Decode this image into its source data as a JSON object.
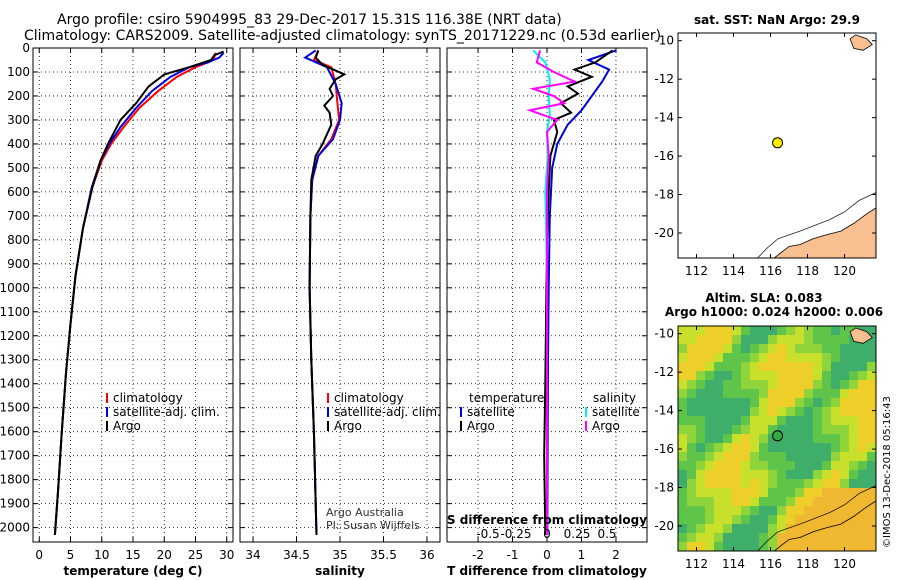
{
  "header": {
    "line1": "Argo profile: csiro 5904995_83 29-Dec-2017 15.31S 116.38E (NRT data)",
    "line2": "Climatology: CARS2009. Satellite-adjusted climatology: synTS_20171229.nc (0.53d earlier)"
  },
  "colors": {
    "climatology": "#ff0000",
    "satellite": "#0000dd",
    "argo": "#000000",
    "sat_salinity": "#00eeee",
    "argo_salinity": "#ff00ff",
    "land": "#f8c090"
  },
  "credit": "©IMOS 13-Dec-2018 05:16:43",
  "chart_data": [
    {
      "type": "line",
      "name": "temperature",
      "xlabel": "temperature (deg C)",
      "xlim": [
        -1,
        31
      ],
      "ylim": [
        2060,
        0
      ],
      "xticks": [
        0,
        5,
        10,
        15,
        20,
        25,
        30
      ],
      "yticks": [
        0,
        100,
        200,
        300,
        400,
        500,
        600,
        700,
        800,
        900,
        1000,
        1100,
        1200,
        1300,
        1400,
        1500,
        1600,
        1700,
        1800,
        1900,
        2000
      ],
      "legend": [
        "climatology",
        "satellite-adj. clim.",
        "Argo"
      ],
      "series": [
        {
          "name": "climatology",
          "color": "red",
          "points": [
            [
              28.2,
              20
            ],
            [
              28,
              40
            ],
            [
              27,
              60
            ],
            [
              25,
              80
            ],
            [
              22,
              120
            ],
            [
              19,
              180
            ],
            [
              16,
              250
            ],
            [
              13.5,
              330
            ],
            [
              11.5,
              400
            ],
            [
              10,
              470
            ],
            [
              8.5,
              580
            ],
            [
              7,
              750
            ],
            [
              5.8,
              950
            ],
            [
              5,
              1150
            ],
            [
              4.3,
              1350
            ],
            [
              3.6,
              1600
            ],
            [
              3,
              1850
            ],
            [
              2.5,
              2030
            ]
          ]
        },
        {
          "name": "satellite-adj. clim.",
          "color": "blue",
          "points": [
            [
              29.5,
              20
            ],
            [
              28.8,
              40
            ],
            [
              27,
              60
            ],
            [
              24,
              80
            ],
            [
              21,
              120
            ],
            [
              18,
              180
            ],
            [
              15.5,
              250
            ],
            [
              13,
              330
            ],
            [
              11.2,
              400
            ],
            [
              9.8,
              470
            ],
            [
              8.4,
              580
            ],
            [
              7,
              750
            ],
            [
              5.8,
              950
            ],
            [
              5,
              1150
            ],
            [
              4.3,
              1350
            ],
            [
              3.6,
              1600
            ],
            [
              3,
              1850
            ],
            [
              2.5,
              2030
            ]
          ]
        },
        {
          "name": "Argo",
          "color": "black",
          "points": [
            [
              29.5,
              15
            ],
            [
              28,
              30
            ],
            [
              27.5,
              50
            ],
            [
              24,
              80
            ],
            [
              20,
              110
            ],
            [
              17.5,
              160
            ],
            [
              15.5,
              230
            ],
            [
              13,
              300
            ],
            [
              11,
              400
            ],
            [
              9.8,
              470
            ],
            [
              8.5,
              580
            ],
            [
              7,
              750
            ],
            [
              5.8,
              950
            ],
            [
              5,
              1150
            ],
            [
              4.3,
              1350
            ],
            [
              3.6,
              1600
            ],
            [
              3,
              1850
            ],
            [
              2.5,
              2030
            ]
          ]
        }
      ]
    },
    {
      "type": "line",
      "name": "salinity",
      "xlabel": "salinity",
      "xlim": [
        33.85,
        36.15
      ],
      "ylim": [
        2060,
        0
      ],
      "xticks": [
        34,
        34.5,
        35,
        35.5,
        36
      ],
      "xticklabels": [
        "34",
        "34.5",
        "35",
        "35.5",
        "36"
      ],
      "legend": [
        "climatology",
        "satellite-adj. clim.",
        "Argo"
      ],
      "annotation": [
        "Argo Australia",
        "PI: Susan Wijffels"
      ],
      "series": [
        {
          "name": "climatology",
          "color": "red",
          "points": [
            [
              34.75,
              10
            ],
            [
              34.7,
              50
            ],
            [
              34.9,
              80
            ],
            [
              34.95,
              150
            ],
            [
              34.97,
              230
            ],
            [
              34.99,
              300
            ],
            [
              34.9,
              380
            ],
            [
              34.75,
              450
            ],
            [
              34.68,
              550
            ],
            [
              34.66,
              700
            ],
            [
              34.65,
              1000
            ],
            [
              34.67,
              1300
            ],
            [
              34.7,
              1600
            ],
            [
              34.72,
              1900
            ],
            [
              34.73,
              2030
            ]
          ]
        },
        {
          "name": "satellite-adj. clim.",
          "color": "blue",
          "points": [
            [
              34.72,
              10
            ],
            [
              34.6,
              40
            ],
            [
              34.85,
              80
            ],
            [
              34.95,
              150
            ],
            [
              35.02,
              230
            ],
            [
              35.0,
              300
            ],
            [
              34.92,
              380
            ],
            [
              34.75,
              450
            ],
            [
              34.68,
              550
            ],
            [
              34.66,
              700
            ],
            [
              34.65,
              1000
            ],
            [
              34.67,
              1300
            ],
            [
              34.7,
              1600
            ],
            [
              34.72,
              1900
            ],
            [
              34.73,
              2030
            ]
          ]
        },
        {
          "name": "Argo",
          "color": "black",
          "points": [
            [
              34.75,
              10
            ],
            [
              34.72,
              40
            ],
            [
              34.8,
              70
            ],
            [
              35.05,
              110
            ],
            [
              34.95,
              130
            ],
            [
              34.88,
              170
            ],
            [
              34.92,
              200
            ],
            [
              34.82,
              240
            ],
            [
              34.88,
              270
            ],
            [
              34.9,
              320
            ],
            [
              34.8,
              400
            ],
            [
              34.72,
              450
            ],
            [
              34.67,
              550
            ],
            [
              34.66,
              700
            ],
            [
              34.65,
              1000
            ],
            [
              34.67,
              1300
            ],
            [
              34.7,
              1600
            ],
            [
              34.72,
              1900
            ],
            [
              34.73,
              2030
            ]
          ]
        }
      ]
    },
    {
      "type": "line",
      "name": "difference",
      "xlabel": "T difference from climatology",
      "xlabel2": "S difference from climatology",
      "xlim": [
        -2.9,
        2.9
      ],
      "ylim": [
        2060,
        0
      ],
      "xticks": [
        -2,
        -1,
        0,
        1,
        2
      ],
      "s_ticks": [
        "-0.5",
        "-0.25",
        "0",
        "0.25",
        "0.5"
      ],
      "legend_temperature_title": "temperature",
      "legend_salinity_title": "salinity",
      "legend_temperature": [
        "satellite",
        "Argo"
      ],
      "legend_salinity": [
        "satellite",
        "Argo"
      ],
      "series": [
        {
          "name": "T satellite",
          "color": "blue",
          "points": [
            [
              2,
              10
            ],
            [
              1.2,
              50
            ],
            [
              1.8,
              90
            ],
            [
              1.6,
              140
            ],
            [
              1.3,
              200
            ],
            [
              1.0,
              260
            ],
            [
              0.6,
              320
            ],
            [
              0.3,
              400
            ],
            [
              0.15,
              500
            ],
            [
              0.08,
              700
            ],
            [
              0.05,
              1000
            ],
            [
              0.03,
              1300
            ],
            [
              0.02,
              1600
            ],
            [
              0.01,
              2030
            ]
          ]
        },
        {
          "name": "T Argo",
          "color": "black",
          "points": [
            [
              1.9,
              10
            ],
            [
              1.4,
              60
            ],
            [
              0.8,
              90
            ],
            [
              1.3,
              120
            ],
            [
              0.6,
              160
            ],
            [
              0.9,
              190
            ],
            [
              0.4,
              230
            ],
            [
              0.7,
              270
            ],
            [
              0.2,
              300
            ],
            [
              0.3,
              350
            ],
            [
              0.1,
              450
            ],
            [
              0.05,
              600
            ],
            [
              0.0,
              800
            ],
            [
              -0.05,
              1400
            ],
            [
              -0.08,
              1700
            ],
            [
              -0.05,
              2030
            ]
          ]
        },
        {
          "name": "S satellite",
          "color": "cyan",
          "points": [
            [
              -0.4,
              10
            ],
            [
              -0.05,
              60
            ],
            [
              0.08,
              130
            ],
            [
              0.05,
              200
            ],
            [
              0.08,
              280
            ],
            [
              0.0,
              350
            ],
            [
              0.02,
              450
            ],
            [
              -0.05,
              600
            ],
            [
              -0.02,
              800
            ],
            [
              0.0,
              1000
            ],
            [
              0.0,
              1400
            ],
            [
              0.0,
              2030
            ]
          ]
        },
        {
          "name": "S Argo",
          "color": "magenta",
          "points": [
            [
              -0.2,
              10
            ],
            [
              -0.3,
              60
            ],
            [
              0.2,
              100
            ],
            [
              0.8,
              140
            ],
            [
              -0.4,
              170
            ],
            [
              0.2,
              200
            ],
            [
              0.5,
              230
            ],
            [
              -0.5,
              260
            ],
            [
              0.3,
              300
            ],
            [
              0.0,
              350
            ],
            [
              0.05,
              450
            ],
            [
              0.0,
              600
            ],
            [
              0.0,
              1000
            ],
            [
              0.0,
              2030
            ]
          ]
        }
      ]
    },
    {
      "type": "map",
      "name": "sst",
      "title": "sat. SST: NaN Argo: 29.9",
      "lon_range": [
        111,
        121.7
      ],
      "lat_range": [
        -21.3,
        -9.6
      ],
      "xticks": [
        112,
        114,
        116,
        118,
        120
      ],
      "yticks": [
        -10,
        -12,
        -14,
        -16,
        -18,
        -20
      ],
      "argo_position": [
        116.38,
        -15.31
      ]
    },
    {
      "type": "heatmap",
      "name": "sla",
      "title1": "Altim. SLA: 0.083",
      "title2": "Argo h1000: 0.024 h2000: 0.006",
      "lon_range": [
        111,
        121.7
      ],
      "lat_range": [
        -21.3,
        -9.6
      ],
      "xticks": [
        112,
        114,
        116,
        118,
        120
      ],
      "yticks": [
        -10,
        -12,
        -14,
        -16,
        -18,
        -20
      ],
      "argo_position": [
        116.38,
        -15.31
      ]
    }
  ]
}
